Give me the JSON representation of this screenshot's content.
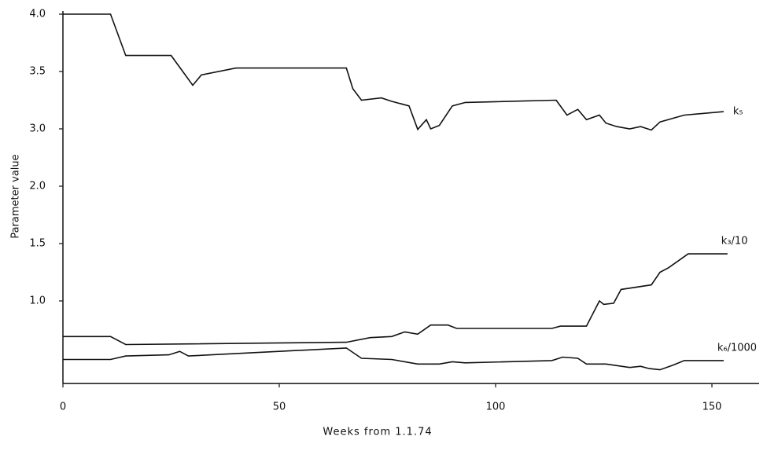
{
  "chart_data": {
    "type": "line",
    "x_label": "Weeks from  1.1.74",
    "y_label": "Parameter value",
    "xlim": [
      0,
      160
    ],
    "xticks": [
      0,
      50,
      100,
      150
    ],
    "ylim": [
      0.28,
      4.0
    ],
    "yticks": [
      {
        "value": 4.0,
        "label": "4.0"
      },
      {
        "value": 3.5,
        "label": "3.5"
      },
      {
        "value": 3.0,
        "label": "3.0"
      },
      {
        "value": 2.0,
        "label": "2.0"
      },
      {
        "value": 1.5,
        "label": "1.5"
      },
      {
        "value": 1.0,
        "label": "1.0"
      }
    ],
    "series": [
      {
        "name": "k₅",
        "color": "#111111",
        "x": [
          0,
          11,
          14.5,
          25,
          30,
          32,
          40,
          65.5,
          67,
          69,
          73.6,
          76,
          80,
          82,
          84,
          85,
          87,
          90,
          93,
          114,
          116.5,
          119,
          121,
          124,
          125.5,
          128,
          131,
          133.5,
          136,
          138,
          143.6,
          152.7
        ],
        "values": [
          4.0,
          4.0,
          3.64,
          3.64,
          3.38,
          3.47,
          3.53,
          3.53,
          3.35,
          3.25,
          3.27,
          3.24,
          3.2,
          2.99,
          3.08,
          3.0,
          3.03,
          3.2,
          3.23,
          3.25,
          3.12,
          3.17,
          3.08,
          3.12,
          3.05,
          3.02,
          3.0,
          3.02,
          2.98,
          3.06,
          3.12,
          3.15
        ]
      },
      {
        "name": "k₃/10",
        "color": "#111111",
        "x": [
          0,
          11,
          14.5,
          65.5,
          71,
          76,
          79,
          82,
          85,
          89,
          91,
          113,
          115,
          121,
          124,
          125,
          127.3,
          129,
          136,
          138,
          140,
          144.5,
          153.6
        ],
        "values": [
          0.69,
          0.69,
          0.62,
          0.64,
          0.68,
          0.69,
          0.73,
          0.71,
          0.79,
          0.79,
          0.76,
          0.76,
          0.78,
          0.78,
          1.0,
          0.97,
          0.98,
          1.1,
          1.14,
          1.25,
          1.29,
          1.41,
          1.41
        ]
      },
      {
        "name": "k₆/1000",
        "color": "#111111",
        "x": [
          0,
          11,
          14.5,
          24.5,
          27,
          29,
          65.5,
          69,
          76,
          82,
          87,
          90,
          93,
          113,
          115.5,
          119,
          121,
          125.5,
          131,
          133.5,
          135.5,
          138,
          141,
          143.6,
          152.7
        ],
        "values": [
          0.49,
          0.49,
          0.52,
          0.53,
          0.56,
          0.52,
          0.59,
          0.5,
          0.49,
          0.45,
          0.45,
          0.47,
          0.46,
          0.48,
          0.51,
          0.5,
          0.45,
          0.45,
          0.42,
          0.43,
          0.41,
          0.4,
          0.44,
          0.48,
          0.48
        ]
      }
    ]
  }
}
